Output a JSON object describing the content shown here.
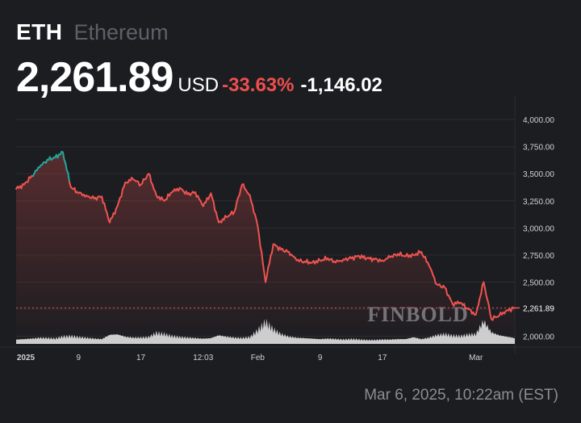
{
  "header": {
    "ticker": "ETH",
    "asset_name": "Ethereum",
    "price": "2,261.89",
    "currency": "USD",
    "change_pct": "-33.63%",
    "change_abs": "-1,146.02"
  },
  "watermark": "FINBOLD",
  "timestamp": "Mar 6, 2025, 10:22am (EST)",
  "colors": {
    "background": "#1c1d21",
    "up": "#26a69a",
    "down": "#ef5350",
    "volume": "#e6e6e6",
    "last_price_tag": "#ef5350"
  },
  "chart_data": {
    "type": "line",
    "title": "",
    "xlabel": "",
    "ylabel": "",
    "ylim": [
      1900,
      4150
    ],
    "yticks": [
      2000,
      2250,
      2500,
      2750,
      3000,
      3250,
      3500,
      3750,
      4000
    ],
    "ytick_labels": [
      "2,000.00",
      "2,250.00",
      "2,500.00",
      "2,750.00",
      "3,000.00",
      "3,250.00",
      "3,500.00",
      "3,750.00",
      "4,000.00"
    ],
    "x_tick_labels": [
      "2025",
      "9",
      "17",
      "12:03",
      "Feb",
      "9",
      "17",
      "Mar"
    ],
    "last_price": 2261.89,
    "last_price_label": "2,261.89",
    "grid": true,
    "series": [
      {
        "dates": [
          "Jan 1",
          "Jan 2",
          "Jan 3",
          "Jan 4",
          "Jan 5",
          "Jan 6",
          "Jan 7",
          "Jan 8",
          "Jan 9",
          "Jan 10",
          "Jan 11",
          "Jan 12",
          "Jan 13",
          "Jan 14",
          "Jan 15",
          "Jan 16",
          "Jan 17",
          "Jan 18",
          "Jan 19",
          "Jan 20",
          "Jan 21",
          "Jan 22",
          "Jan 23",
          "Jan 24",
          "Jan 25",
          "Jan 26",
          "Jan 27",
          "Jan 28",
          "Jan 29",
          "Jan 30",
          "Jan 31",
          "Feb 1",
          "Feb 2",
          "Feb 3",
          "Feb 4",
          "Feb 5",
          "Feb 6",
          "Feb 7",
          "Feb 8",
          "Feb 9",
          "Feb 10",
          "Feb 11",
          "Feb 12",
          "Feb 13",
          "Feb 14",
          "Feb 15",
          "Feb 16",
          "Feb 17",
          "Feb 18",
          "Feb 19",
          "Feb 20",
          "Feb 21",
          "Feb 22",
          "Feb 23",
          "Feb 24",
          "Feb 25",
          "Feb 26",
          "Feb 27",
          "Feb 28",
          "Mar 1",
          "Mar 2",
          "Mar 3",
          "Mar 4",
          "Mar 5",
          "Mar 6"
        ],
        "values": [
          3360,
          3400,
          3480,
          3560,
          3630,
          3650,
          3700,
          3380,
          3320,
          3300,
          3270,
          3290,
          3050,
          3200,
          3420,
          3450,
          3400,
          3500,
          3300,
          3250,
          3330,
          3370,
          3310,
          3330,
          3200,
          3320,
          3050,
          3100,
          3150,
          3400,
          3300,
          3020,
          2500,
          2850,
          2800,
          2780,
          2700,
          2690,
          2680,
          2700,
          2720,
          2680,
          2710,
          2720,
          2740,
          2720,
          2710,
          2700,
          2730,
          2760,
          2740,
          2750,
          2780,
          2650,
          2480,
          2450,
          2300,
          2310,
          2250,
          2200,
          2500,
          2160,
          2190,
          2240,
          2261.89
        ],
        "volume": [
          0.18,
          0.2,
          0.22,
          0.25,
          0.24,
          0.22,
          0.3,
          0.32,
          0.28,
          0.25,
          0.22,
          0.2,
          0.38,
          0.4,
          0.3,
          0.26,
          0.26,
          0.28,
          0.45,
          0.4,
          0.32,
          0.28,
          0.26,
          0.24,
          0.22,
          0.24,
          0.36,
          0.3,
          0.26,
          0.24,
          0.28,
          0.55,
          0.9,
          0.6,
          0.4,
          0.3,
          0.26,
          0.24,
          0.22,
          0.2,
          0.22,
          0.2,
          0.18,
          0.2,
          0.18,
          0.16,
          0.16,
          0.18,
          0.18,
          0.2,
          0.2,
          0.28,
          0.2,
          0.26,
          0.36,
          0.4,
          0.34,
          0.32,
          0.38,
          0.4,
          0.95,
          0.48,
          0.36,
          0.3,
          0.24
        ]
      }
    ]
  }
}
